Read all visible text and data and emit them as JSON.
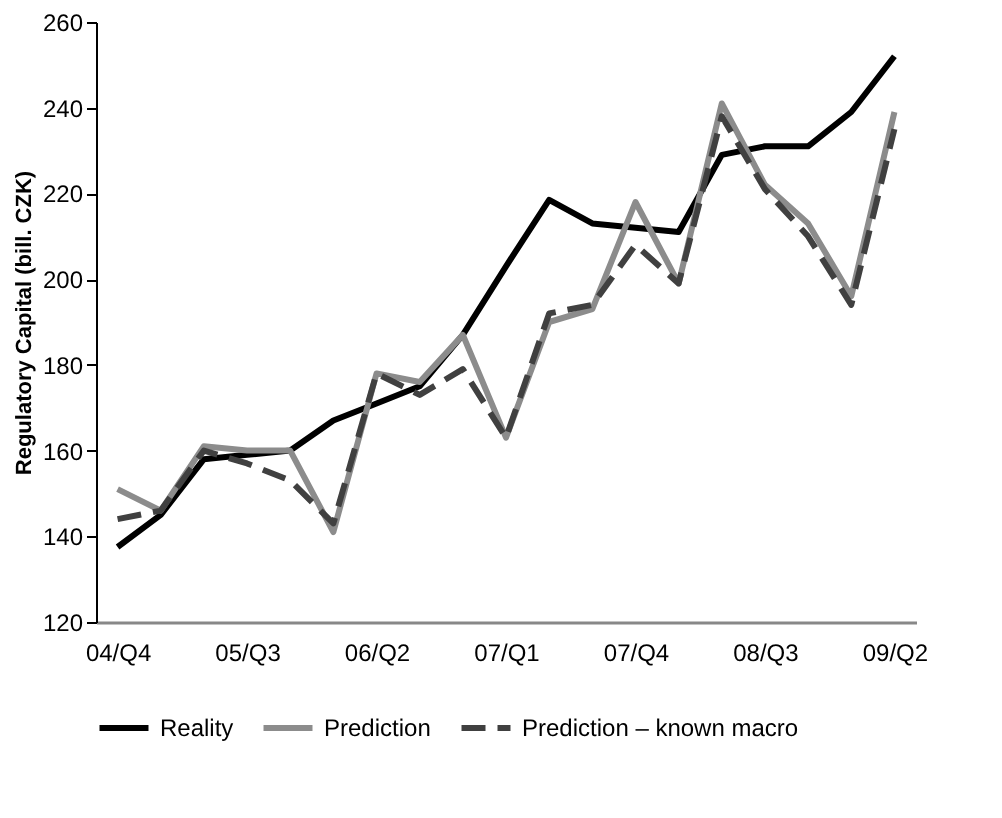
{
  "chart_data": {
    "type": "line",
    "ylabel": "Regulatory Capital (bill. CZK)",
    "categories": [
      "04/Q4",
      null,
      null,
      "05/Q3",
      null,
      null,
      "06/Q2",
      null,
      null,
      "07/Q1",
      null,
      null,
      "07/Q4",
      null,
      null,
      "08/Q3",
      null,
      null,
      "09/Q2"
    ],
    "ylim": [
      120,
      260
    ],
    "yticks": [
      120,
      140,
      160,
      180,
      200,
      220,
      240,
      260
    ],
    "grid": false,
    "legend": "bottom",
    "marker": "none",
    "series": [
      {
        "name": "Reality",
        "color": "#000000",
        "line_style": "solid",
        "values": [
          137.5,
          145,
          158,
          159,
          160,
          167,
          171,
          175,
          187,
          203,
          218.5,
          213,
          212,
          211,
          229,
          231,
          231,
          239,
          252
        ]
      },
      {
        "name": "Prediction",
        "color": "#8c8c8c",
        "line_style": "solid",
        "values": [
          151,
          146,
          161,
          160,
          160,
          141,
          178,
          176,
          187,
          163,
          190,
          193,
          218,
          199,
          241,
          222,
          213,
          196,
          239
        ]
      },
      {
        "name": "Prediction – known macro",
        "color": "#404040",
        "line_style": "dashed",
        "values": [
          144,
          146,
          160,
          157,
          153,
          143,
          178,
          173,
          179,
          163,
          192,
          194,
          208,
          199,
          238,
          221,
          210,
          194,
          235
        ]
      }
    ]
  }
}
